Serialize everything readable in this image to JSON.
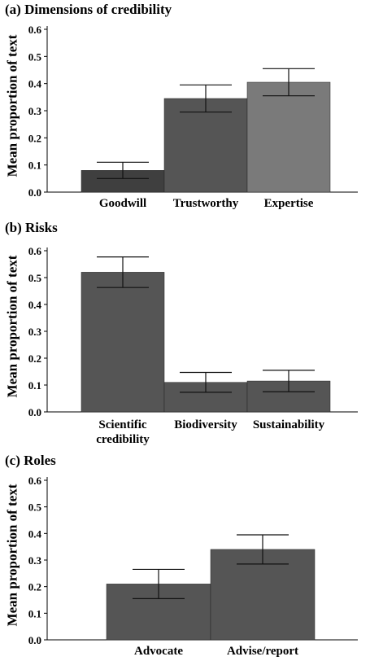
{
  "chart_data": [
    {
      "panel_label": "(a)",
      "title": "Dimensions of credibility",
      "type": "bar",
      "ylabel": "Mean proportion of text",
      "ylim": [
        0,
        0.6
      ],
      "yticks": [
        "0.0",
        "0.1",
        "0.2",
        "0.3",
        "0.4",
        "0.5",
        "0.6"
      ],
      "categories": [
        "Goodwill",
        "Trustworthy",
        "Expertise"
      ],
      "values": [
        0.08,
        0.345,
        0.405
      ],
      "error": [
        0.03,
        0.05,
        0.05
      ],
      "colors": [
        "#3f3f3f",
        "#555555",
        "#7a7a7a"
      ]
    },
    {
      "panel_label": "(b)",
      "title": "Risks",
      "type": "bar",
      "ylabel": "Mean proportion of text",
      "ylim": [
        0,
        0.6
      ],
      "yticks": [
        "0.0",
        "0.1",
        "0.2",
        "0.3",
        "0.4",
        "0.5",
        "0.6"
      ],
      "categories": [
        "Scientific\ncredibility",
        "Biodiversity",
        "Sustainability"
      ],
      "values": [
        0.52,
        0.11,
        0.115
      ],
      "error": [
        0.057,
        0.037,
        0.04
      ],
      "colors": [
        "#555555",
        "#555555",
        "#555555"
      ]
    },
    {
      "panel_label": "(c)",
      "title": "Roles",
      "type": "bar",
      "ylabel": "Mean proportion of text",
      "ylim": [
        0,
        0.6
      ],
      "yticks": [
        "0.0",
        "0.1",
        "0.2",
        "0.3",
        "0.4",
        "0.5",
        "0.6"
      ],
      "categories": [
        "Advocate",
        "Advise/report"
      ],
      "values": [
        0.21,
        0.34
      ],
      "error": [
        0.055,
        0.055
      ],
      "colors": [
        "#555555",
        "#555555"
      ]
    }
  ]
}
